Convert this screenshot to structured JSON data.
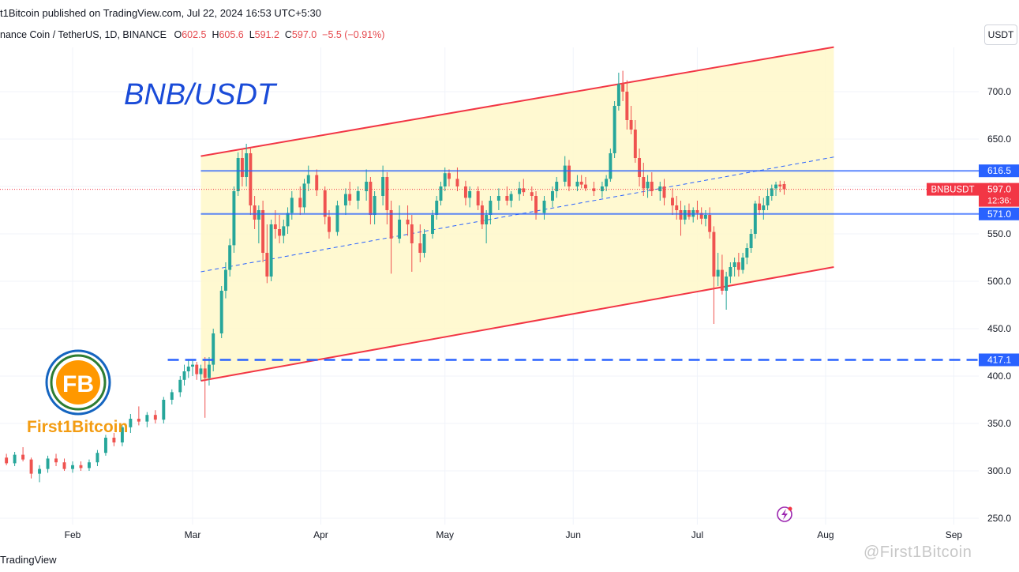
{
  "header": {
    "published": "t1Bitcoin published on TradingView.com, Jul 22, 2024 16:53 UTC+5:30",
    "symbol_line": "nance Coin / TetherUS, 1D, BINANCE",
    "open_label": "O",
    "open": "602.5",
    "high_label": "H",
    "high": "605.6",
    "low_label": "L",
    "low": "591.2",
    "close_label": "C",
    "close": "597.0",
    "change": "−5.5 (−0.91%)",
    "currency_button": "USDT"
  },
  "footer": {
    "brand": "TradingView",
    "watermark": "@First1Bitcoin"
  },
  "logo": {
    "text": "First1Bitcoin",
    "monogram": "FB"
  },
  "chart_data": {
    "type": "candlestick",
    "title": "BNB/USDT",
    "y_axis": {
      "ticks": [
        250,
        300,
        350,
        400,
        450,
        500,
        550,
        600,
        650,
        700
      ],
      "ylim": [
        242,
        775
      ]
    },
    "x_axis": {
      "labels": [
        "Feb",
        "Mar",
        "Apr",
        "May",
        "Jun",
        "Jul",
        "Aug",
        "Sep"
      ],
      "label_dates": [
        "2024-02-01",
        "2024-03-01",
        "2024-04-01",
        "2024-05-01",
        "2024-06-01",
        "2024-07-01",
        "2024-08-01",
        "2024-09-01"
      ]
    },
    "colors": {
      "up": "#26a69a",
      "down": "#ef5350",
      "channel": "#f23645",
      "channel_fill": "#fff8cc",
      "levels": "#2962ff"
    },
    "price_labels": [
      {
        "value": 616.5,
        "text": "616.5",
        "color": "#2962ff"
      },
      {
        "value": 597.0,
        "text": "597.0",
        "color": "#f23645"
      },
      {
        "value": 571.0,
        "text": "571.0",
        "color": "#2962ff"
      },
      {
        "value": 417.1,
        "text": "417.1",
        "color": "#2962ff"
      }
    ],
    "current": {
      "symbol": "BNBUSDT",
      "price": 597.0,
      "countdown": "12:36:",
      "color": "#f23645"
    },
    "horizontal_levels": [
      {
        "value": 616.5,
        "from": "2024-03-03",
        "style": "solid"
      },
      {
        "value": 571.0,
        "from": "2024-03-03",
        "style": "solid"
      },
      {
        "value": 417.1,
        "from": "2024-02-24",
        "style": "dashed"
      }
    ],
    "channel": {
      "upper": [
        {
          "date": "2024-03-03",
          "value": 632
        },
        {
          "date": "2024-08-03",
          "value": 747
        }
      ],
      "lower": [
        {
          "date": "2024-03-03",
          "value": 395
        },
        {
          "date": "2024-08-03",
          "value": 515
        }
      ],
      "mid": [
        {
          "date": "2024-03-03",
          "value": 510
        },
        {
          "date": "2024-08-03",
          "value": 631
        }
      ]
    },
    "candles": [
      [
        "2024-01-10",
        310,
        322,
        305,
        316
      ],
      [
        "2024-01-12",
        316,
        319,
        302,
        305
      ],
      [
        "2024-01-14",
        305,
        316,
        300,
        314
      ],
      [
        "2024-01-16",
        314,
        318,
        306,
        308
      ],
      [
        "2024-01-18",
        308,
        320,
        305,
        317
      ],
      [
        "2024-01-20",
        317,
        325,
        310,
        312
      ],
      [
        "2024-01-22",
        312,
        314,
        292,
        297
      ],
      [
        "2024-01-24",
        297,
        306,
        288,
        302
      ],
      [
        "2024-01-26",
        302,
        316,
        298,
        313
      ],
      [
        "2024-01-28",
        313,
        318,
        305,
        309
      ],
      [
        "2024-01-30",
        309,
        313,
        300,
        302
      ],
      [
        "2024-02-01",
        302,
        310,
        298,
        306
      ],
      [
        "2024-02-03",
        306,
        310,
        300,
        303
      ],
      [
        "2024-02-05",
        303,
        312,
        300,
        309
      ],
      [
        "2024-02-07",
        309,
        322,
        305,
        319
      ],
      [
        "2024-02-09",
        319,
        338,
        316,
        335
      ],
      [
        "2024-02-11",
        335,
        340,
        326,
        330
      ],
      [
        "2024-02-13",
        330,
        348,
        326,
        346
      ],
      [
        "2024-02-15",
        346,
        360,
        340,
        355
      ],
      [
        "2024-02-17",
        355,
        368,
        348,
        352
      ],
      [
        "2024-02-19",
        352,
        362,
        346,
        359
      ],
      [
        "2024-02-21",
        359,
        364,
        350,
        354
      ],
      [
        "2024-02-23",
        354,
        378,
        350,
        375
      ],
      [
        "2024-02-25",
        375,
        386,
        370,
        383
      ],
      [
        "2024-02-27",
        383,
        400,
        378,
        396
      ],
      [
        "2024-02-28",
        396,
        412,
        390,
        405
      ],
      [
        "2024-02-29",
        405,
        418,
        398,
        410
      ],
      [
        "2024-03-01",
        410,
        416,
        400,
        412
      ],
      [
        "2024-03-02",
        412,
        415,
        396,
        402
      ],
      [
        "2024-03-03",
        402,
        412,
        395,
        408
      ],
      [
        "2024-03-04",
        408,
        420,
        356,
        398
      ],
      [
        "2024-03-05",
        398,
        420,
        390,
        412
      ],
      [
        "2024-03-06",
        412,
        450,
        405,
        445
      ],
      [
        "2024-03-08",
        445,
        495,
        440,
        490
      ],
      [
        "2024-03-09",
        490,
        520,
        482,
        512
      ],
      [
        "2024-03-10",
        512,
        545,
        505,
        538
      ],
      [
        "2024-03-11",
        538,
        600,
        530,
        595
      ],
      [
        "2024-03-12",
        595,
        636,
        590,
        630
      ],
      [
        "2024-03-13",
        630,
        640,
        600,
        610
      ],
      [
        "2024-03-14",
        610,
        645,
        600,
        635
      ],
      [
        "2024-03-15",
        635,
        640,
        570,
        580
      ],
      [
        "2024-03-16",
        580,
        590,
        555,
        565
      ],
      [
        "2024-03-17",
        565,
        580,
        540,
        575
      ],
      [
        "2024-03-18",
        575,
        585,
        520,
        530
      ],
      [
        "2024-03-19",
        530,
        560,
        498,
        505
      ],
      [
        "2024-03-20",
        505,
        565,
        500,
        560
      ],
      [
        "2024-03-21",
        560,
        575,
        545,
        555
      ],
      [
        "2024-03-22",
        555,
        570,
        540,
        548
      ],
      [
        "2024-03-23",
        548,
        565,
        540,
        558
      ],
      [
        "2024-03-24",
        558,
        578,
        550,
        572
      ],
      [
        "2024-03-25",
        572,
        595,
        565,
        588
      ],
      [
        "2024-03-27",
        588,
        600,
        570,
        578
      ],
      [
        "2024-03-28",
        578,
        608,
        572,
        603
      ],
      [
        "2024-03-29",
        603,
        622,
        595,
        612
      ],
      [
        "2024-03-31",
        612,
        618,
        590,
        596
      ],
      [
        "2024-04-02",
        596,
        600,
        560,
        568
      ],
      [
        "2024-04-03",
        568,
        575,
        545,
        552
      ],
      [
        "2024-04-05",
        552,
        585,
        548,
        580
      ],
      [
        "2024-04-07",
        580,
        598,
        570,
        592
      ],
      [
        "2024-04-08",
        592,
        605,
        580,
        585
      ],
      [
        "2024-04-10",
        585,
        600,
        576,
        595
      ],
      [
        "2024-04-12",
        595,
        618,
        585,
        605
      ],
      [
        "2024-04-13",
        605,
        610,
        560,
        570
      ],
      [
        "2024-04-14",
        570,
        595,
        560,
        590
      ],
      [
        "2024-04-16",
        590,
        622,
        580,
        610
      ],
      [
        "2024-04-17",
        610,
        615,
        560,
        575
      ],
      [
        "2024-04-18",
        575,
        585,
        508,
        545
      ],
      [
        "2024-04-20",
        545,
        580,
        540,
        565
      ],
      [
        "2024-04-22",
        565,
        580,
        548,
        560
      ],
      [
        "2024-04-23",
        560,
        570,
        510,
        540
      ],
      [
        "2024-04-25",
        540,
        560,
        520,
        530
      ],
      [
        "2024-04-26",
        530,
        555,
        525,
        550
      ],
      [
        "2024-04-28",
        550,
        575,
        545,
        570
      ],
      [
        "2024-04-29",
        570,
        590,
        565,
        585
      ],
      [
        "2024-04-30",
        585,
        605,
        580,
        600
      ],
      [
        "2024-05-01",
        600,
        620,
        595,
        614
      ],
      [
        "2024-05-02",
        614,
        618,
        600,
        608
      ],
      [
        "2024-05-04",
        608,
        620,
        595,
        600
      ],
      [
        "2024-05-06",
        600,
        606,
        580,
        588
      ],
      [
        "2024-05-07",
        588,
        600,
        578,
        595
      ],
      [
        "2024-05-09",
        595,
        600,
        575,
        580
      ],
      [
        "2024-05-10",
        580,
        585,
        555,
        560
      ],
      [
        "2024-05-11",
        560,
        575,
        540,
        570
      ],
      [
        "2024-05-12",
        570,
        590,
        560,
        585
      ],
      [
        "2024-05-14",
        585,
        598,
        575,
        590
      ],
      [
        "2024-05-16",
        590,
        600,
        580,
        585
      ],
      [
        "2024-05-17",
        585,
        595,
        578,
        592
      ],
      [
        "2024-05-19",
        592,
        605,
        585,
        598
      ],
      [
        "2024-05-20",
        598,
        608,
        590,
        594
      ],
      [
        "2024-05-22",
        594,
        600,
        585,
        590
      ],
      [
        "2024-05-23",
        590,
        595,
        565,
        572
      ],
      [
        "2024-05-25",
        572,
        590,
        565,
        585
      ],
      [
        "2024-05-27",
        585,
        600,
        578,
        595
      ],
      [
        "2024-05-28",
        595,
        610,
        588,
        605
      ],
      [
        "2024-05-30",
        605,
        632,
        600,
        622
      ],
      [
        "2024-05-31",
        622,
        628,
        595,
        600
      ],
      [
        "2024-06-02",
        600,
        612,
        595,
        605
      ],
      [
        "2024-06-03",
        605,
        612,
        598,
        602
      ],
      [
        "2024-06-04",
        602,
        610,
        595,
        598
      ],
      [
        "2024-06-06",
        598,
        605,
        590,
        595
      ],
      [
        "2024-06-08",
        595,
        605,
        588,
        600
      ],
      [
        "2024-06-09",
        600,
        612,
        595,
        608
      ],
      [
        "2024-06-10",
        608,
        640,
        605,
        635
      ],
      [
        "2024-06-11",
        635,
        690,
        630,
        685
      ],
      [
        "2024-06-12",
        685,
        720,
        680,
        708
      ],
      [
        "2024-06-13",
        708,
        722,
        690,
        700
      ],
      [
        "2024-06-14",
        700,
        712,
        660,
        670
      ],
      [
        "2024-06-15",
        670,
        685,
        655,
        660
      ],
      [
        "2024-06-16",
        660,
        670,
        625,
        630
      ],
      [
        "2024-06-17",
        630,
        640,
        600,
        610
      ],
      [
        "2024-06-18",
        610,
        625,
        590,
        598
      ],
      [
        "2024-06-19",
        598,
        612,
        588,
        605
      ],
      [
        "2024-06-20",
        605,
        615,
        590,
        595
      ],
      [
        "2024-06-22",
        595,
        605,
        585,
        600
      ],
      [
        "2024-06-23",
        600,
        608,
        580,
        588
      ],
      [
        "2024-06-25",
        588,
        598,
        570,
        580
      ],
      [
        "2024-06-26",
        580,
        590,
        565,
        575
      ],
      [
        "2024-06-27",
        575,
        585,
        548,
        565
      ],
      [
        "2024-06-28",
        565,
        580,
        560,
        575
      ],
      [
        "2024-06-29",
        575,
        582,
        565,
        568
      ],
      [
        "2024-06-30",
        568,
        578,
        562,
        575
      ],
      [
        "2024-07-01",
        575,
        585,
        565,
        572
      ],
      [
        "2024-07-02",
        572,
        578,
        560,
        566
      ],
      [
        "2024-07-03",
        566,
        575,
        558,
        570
      ],
      [
        "2024-07-04",
        570,
        578,
        545,
        552
      ],
      [
        "2024-07-05",
        552,
        558,
        455,
        505
      ],
      [
        "2024-07-06",
        505,
        530,
        495,
        512
      ],
      [
        "2024-07-07",
        512,
        528,
        486,
        490
      ],
      [
        "2024-07-08",
        490,
        510,
        470,
        505
      ],
      [
        "2024-07-09",
        505,
        520,
        498,
        515
      ],
      [
        "2024-07-10",
        515,
        525,
        505,
        520
      ],
      [
        "2024-07-11",
        520,
        530,
        505,
        512
      ],
      [
        "2024-07-12",
        512,
        530,
        508,
        525
      ],
      [
        "2024-07-13",
        525,
        540,
        518,
        535
      ],
      [
        "2024-07-14",
        535,
        555,
        530,
        550
      ],
      [
        "2024-07-15",
        550,
        585,
        545,
        582
      ],
      [
        "2024-07-16",
        582,
        590,
        570,
        575
      ],
      [
        "2024-07-17",
        575,
        588,
        565,
        580
      ],
      [
        "2024-07-18",
        580,
        598,
        575,
        590
      ],
      [
        "2024-07-19",
        590,
        602,
        585,
        598
      ],
      [
        "2024-07-20",
        598,
        605,
        590,
        602
      ],
      [
        "2024-07-21",
        602,
        606,
        594,
        600
      ],
      [
        "2024-07-22",
        602.5,
        605.6,
        591.2,
        597.0
      ]
    ]
  }
}
